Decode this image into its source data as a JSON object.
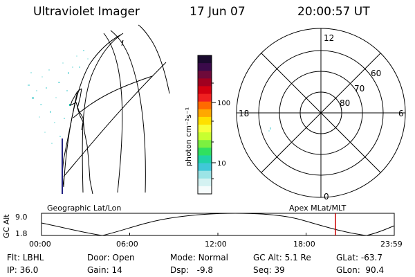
{
  "header": {
    "instrument": "Ultraviolet Imager",
    "date": "17 Jun 07",
    "time": "20:00:57 UT"
  },
  "colorbar": {
    "unit_label": "photon cm⁻²s⁻¹",
    "ticks": [
      "100",
      "10"
    ],
    "colors": [
      "#1a0a2e",
      "#3a0a4a",
      "#6e0a3a",
      "#a00020",
      "#d40010",
      "#f02020",
      "#ff6a00",
      "#ffa800",
      "#ffe000",
      "#f6ff3a",
      "#c8ff30",
      "#7cf040",
      "#30e060",
      "#20d2a8",
      "#40c8d8",
      "#9ce4e6",
      "#d4f2f2",
      "#f6fcfc"
    ]
  },
  "maps": {
    "left_label": "Geographic Lat/Lon",
    "right_label": "Apex MLat/MLT"
  },
  "polar": {
    "mlt_labels": [
      "12",
      "18",
      "6",
      "0"
    ],
    "lat_labels": [
      "60",
      "70",
      "80"
    ]
  },
  "orbit": {
    "axis_label": "GC Alt",
    "y_ticks": [
      "9.0",
      "1.8"
    ],
    "x_ticks": [
      "00:00",
      "06:00",
      "12:00",
      "18:00",
      "23:59"
    ],
    "current_marker_color": "#cc0000"
  },
  "status": {
    "row1": [
      {
        "label": "Flt:",
        "value": "LBHL"
      },
      {
        "label": "Door:",
        "value": "Open"
      },
      {
        "label": "Mode:",
        "value": "Normal"
      },
      {
        "label": "GC Alt:",
        "value": "5.1 Re"
      },
      {
        "label": "GLat:",
        "value": "-63.7"
      }
    ],
    "row2": [
      {
        "label": "IP:",
        "value": "36.0"
      },
      {
        "label": "Gain:",
        "value": "14"
      },
      {
        "label": "Dsp:",
        "value": "-9.8"
      },
      {
        "label": "Seq:",
        "value": "39"
      },
      {
        "label": "GLon:",
        "value": "90.4"
      }
    ]
  }
}
